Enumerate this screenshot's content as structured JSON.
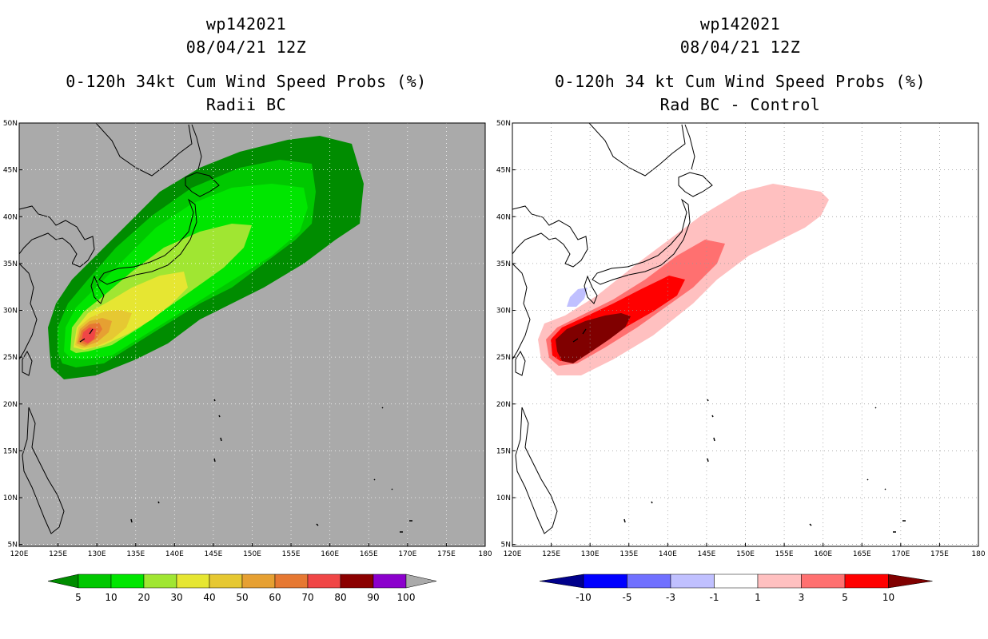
{
  "left_panel": {
    "title_lines": [
      "wp142021",
      "08/04/21 12Z",
      "0-120h 34kt Cum Wind Speed Probs (%)",
      "Radii BC"
    ],
    "background_color": "#aaaaaa",
    "colorbar": {
      "labels": [
        "5",
        "10",
        "20",
        "30",
        "40",
        "50",
        "60",
        "70",
        "80",
        "90",
        "100"
      ],
      "colors": [
        "#008c00",
        "#00c800",
        "#00e600",
        "#a0e632",
        "#e6e632",
        "#e6c832",
        "#e6a032",
        "#e67832",
        "#f04646",
        "#8b0000",
        "#8b00cc",
        "#aaaaaa"
      ]
    }
  },
  "right_panel": {
    "title_lines": [
      "wp142021",
      "08/04/21 12Z",
      "0-120h 34 kt Cum Wind Speed Probs (%)",
      "Rad BC - Control"
    ],
    "background_color": "#ffffff",
    "colorbar": {
      "labels": [
        "-10",
        "-5",
        "-3",
        "-1",
        "1",
        "3",
        "5",
        "10"
      ],
      "colors": [
        "#00008b",
        "#0000ff",
        "#7070ff",
        "#c0c0ff",
        "#ffffff",
        "#ffc0c0",
        "#ff7070",
        "#ff0000",
        "#800000"
      ]
    }
  },
  "axes": {
    "lon_labels": [
      "120E",
      "125E",
      "130E",
      "135E",
      "140E",
      "145E",
      "150E",
      "155E",
      "160E",
      "165E",
      "170E",
      "175E",
      "180"
    ],
    "lat_labels": [
      "50N",
      "45N",
      "40N",
      "35N",
      "30N",
      "25N",
      "20N",
      "15N",
      "10N",
      "5N"
    ],
    "lon_range": [
      120,
      180
    ],
    "lat_range": [
      4.8,
      50
    ]
  },
  "chart_data": [
    {
      "type": "heatmap",
      "title": "0-120h 34kt Cum Wind Speed Probs (%) - Radii BC",
      "storm": "wp142021",
      "valid": "08/04/21 12Z",
      "units": "%",
      "contour_levels": [
        5,
        10,
        20,
        30,
        40,
        50,
        60,
        70,
        80,
        90,
        100
      ],
      "peak_location": {
        "lon": 128,
        "lat": 27,
        "value_range": "70-80"
      }
    },
    {
      "type": "heatmap",
      "title": "0-120h 34 kt Cum Wind Speed Probs (%) - Rad BC - Control",
      "storm": "wp142021",
      "valid": "08/04/21 12Z",
      "units": "%",
      "contour_levels": [
        -10,
        -5,
        -3,
        -1,
        1,
        3,
        5,
        10
      ],
      "peak_location": {
        "lon": 129,
        "lat": 27,
        "value_range": ">10"
      },
      "negative_area": {
        "lon": 128,
        "lat": 31,
        "value_range": "-3 to -1"
      }
    }
  ]
}
